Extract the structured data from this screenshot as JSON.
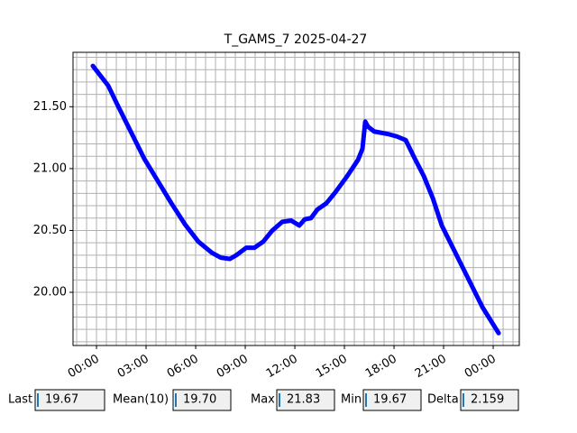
{
  "chart_data": {
    "type": "line",
    "title": "T_GAMS_7 2025-04-27",
    "x": [
      -0.22,
      0.71,
      1.25,
      2.07,
      2.89,
      3.71,
      4.53,
      5.35,
      6.16,
      6.98,
      7.53,
      8.07,
      8.46,
      9.06,
      9.55,
      10.09,
      10.64,
      11.24,
      11.78,
      12.27,
      12.6,
      12.98,
      13.37,
      13.91,
      14.46,
      15.17,
      15.82,
      16.09,
      16.26,
      16.42,
      16.8,
      17.62,
      18.17,
      18.71,
      19.26,
      19.8,
      20.35,
      20.89,
      21.71,
      22.53,
      23.35,
      24.33
    ],
    "series": [
      {
        "color": "#0000ff",
        "values": [
          21.83,
          21.67,
          21.52,
          21.3,
          21.08,
          20.9,
          20.72,
          20.55,
          20.41,
          20.32,
          20.28,
          20.27,
          20.3,
          20.36,
          20.36,
          20.41,
          20.5,
          20.57,
          20.58,
          20.54,
          20.59,
          20.6,
          20.67,
          20.72,
          20.81,
          20.94,
          21.07,
          21.16,
          21.38,
          21.34,
          21.3,
          21.28,
          21.26,
          21.23,
          21.08,
          20.94,
          20.76,
          20.54,
          20.32,
          20.1,
          19.88,
          19.67
        ]
      }
    ],
    "xlim": [
      -1.42,
      25.58
    ],
    "ylim": [
      19.57,
      21.94
    ],
    "xticks": [
      {
        "value": 0,
        "label": "00:00"
      },
      {
        "value": 3,
        "label": "03:00"
      },
      {
        "value": 6,
        "label": "06:00"
      },
      {
        "value": 9,
        "label": "09:00"
      },
      {
        "value": 12,
        "label": "12:00"
      },
      {
        "value": 15,
        "label": "15:00"
      },
      {
        "value": 18,
        "label": "18:00"
      },
      {
        "value": 21,
        "label": "21:00"
      },
      {
        "value": 24,
        "label": "00:00"
      }
    ],
    "yticks": [
      {
        "value": 20,
        "label": "20.00"
      },
      {
        "value": 20.5,
        "label": "20.50"
      },
      {
        "value": 21,
        "label": "21.00"
      },
      {
        "value": 21.5,
        "label": "21.50"
      }
    ],
    "xminorticks": [
      -1.2,
      -0.6,
      0.6,
      1.2,
      1.8,
      2.4,
      3.6,
      4.2,
      4.8,
      5.4,
      6.6,
      7.2,
      7.8,
      8.4,
      9.6,
      10.2,
      10.8,
      11.4,
      12.6,
      13.2,
      13.8,
      14.4,
      15.6,
      16.2,
      16.8,
      17.4,
      18.6,
      19.2,
      19.8,
      20.4,
      21.6,
      22.2,
      22.8,
      23.4,
      24.6,
      25.2
    ],
    "yminorticks": [
      19.6,
      19.7,
      19.8,
      19.9,
      20.1,
      20.2,
      20.3,
      20.4,
      20.6,
      20.7,
      20.8,
      20.9,
      21.1,
      21.2,
      21.3,
      21.4,
      21.6,
      21.7,
      21.8,
      21.9
    ],
    "grid": true
  },
  "stats": [
    {
      "label": "Last",
      "value": "19.67"
    },
    {
      "label": "Mean(10)",
      "value": "19.70"
    },
    {
      "label": "Max",
      "value": "21.83"
    },
    {
      "label": "Min",
      "value": "19.67"
    },
    {
      "label": "Delta",
      "value": "2.159"
    }
  ]
}
